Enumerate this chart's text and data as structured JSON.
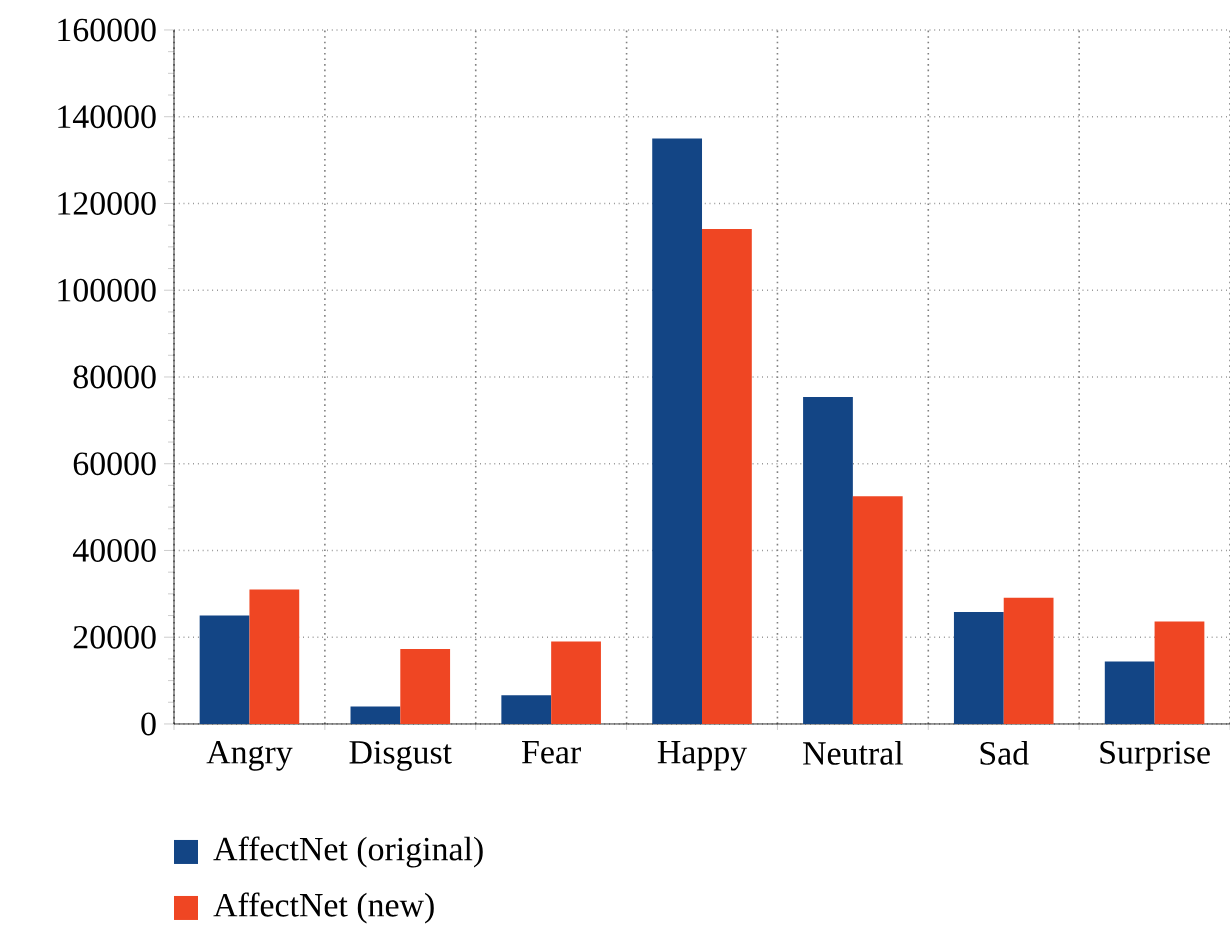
{
  "chart_data": {
    "type": "bar",
    "categories": [
      "Angry",
      "Disgust",
      "Fear",
      "Happy",
      "Neutral",
      "Sad",
      "Surprise"
    ],
    "series": [
      {
        "name": "AffectNet (original)",
        "color": "#134585",
        "values": [
          25000,
          4000,
          6600,
          135000,
          75400,
          25800,
          14400
        ]
      },
      {
        "name": "AffectNet (new)",
        "color": "#ef4623",
        "values": [
          31000,
          17300,
          19000,
          114100,
          52500,
          29100,
          23600
        ]
      }
    ],
    "ylim": [
      0,
      160000
    ],
    "yticks": [
      0,
      20000,
      40000,
      60000,
      80000,
      100000,
      120000,
      140000,
      160000
    ],
    "grid": true,
    "legend": "bottom left"
  }
}
